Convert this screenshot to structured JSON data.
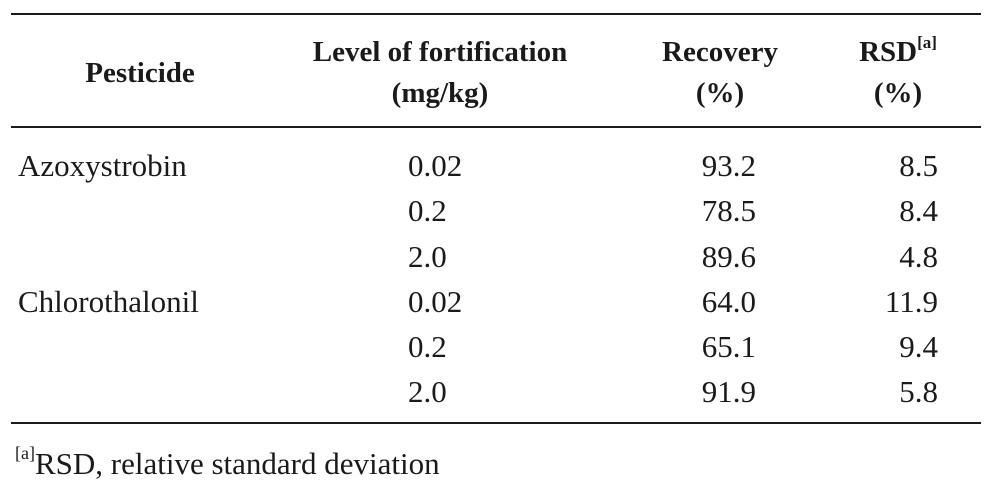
{
  "table": {
    "headers": {
      "pesticide": "Pesticide",
      "level_line1": "Level of fortification",
      "level_line2": "(mg/kg)",
      "recovery_line1": "Recovery",
      "recovery_line2": "(%)",
      "rsd_line1": "RSD",
      "rsd_note_mark": "[a]",
      "rsd_line2": "(%)"
    },
    "rows": [
      {
        "pesticide": "Azoxystrobin",
        "level": "0.02",
        "recovery": "93.2",
        "rsd": "8.5"
      },
      {
        "pesticide": "",
        "level": "0.2",
        "recovery": "78.5",
        "rsd": "8.4"
      },
      {
        "pesticide": "",
        "level": "2.0",
        "recovery": "89.6",
        "rsd": "4.8"
      },
      {
        "pesticide": "Chlorothalonil",
        "level": "0.02",
        "recovery": "64.0",
        "rsd": "11.9"
      },
      {
        "pesticide": "",
        "level": "0.2",
        "recovery": "65.1",
        "rsd": "9.4"
      },
      {
        "pesticide": "",
        "level": "2.0",
        "recovery": "91.9",
        "rsd": "5.8"
      }
    ]
  },
  "footnote": {
    "mark": "[a]",
    "text": "RSD, relative standard deviation"
  }
}
